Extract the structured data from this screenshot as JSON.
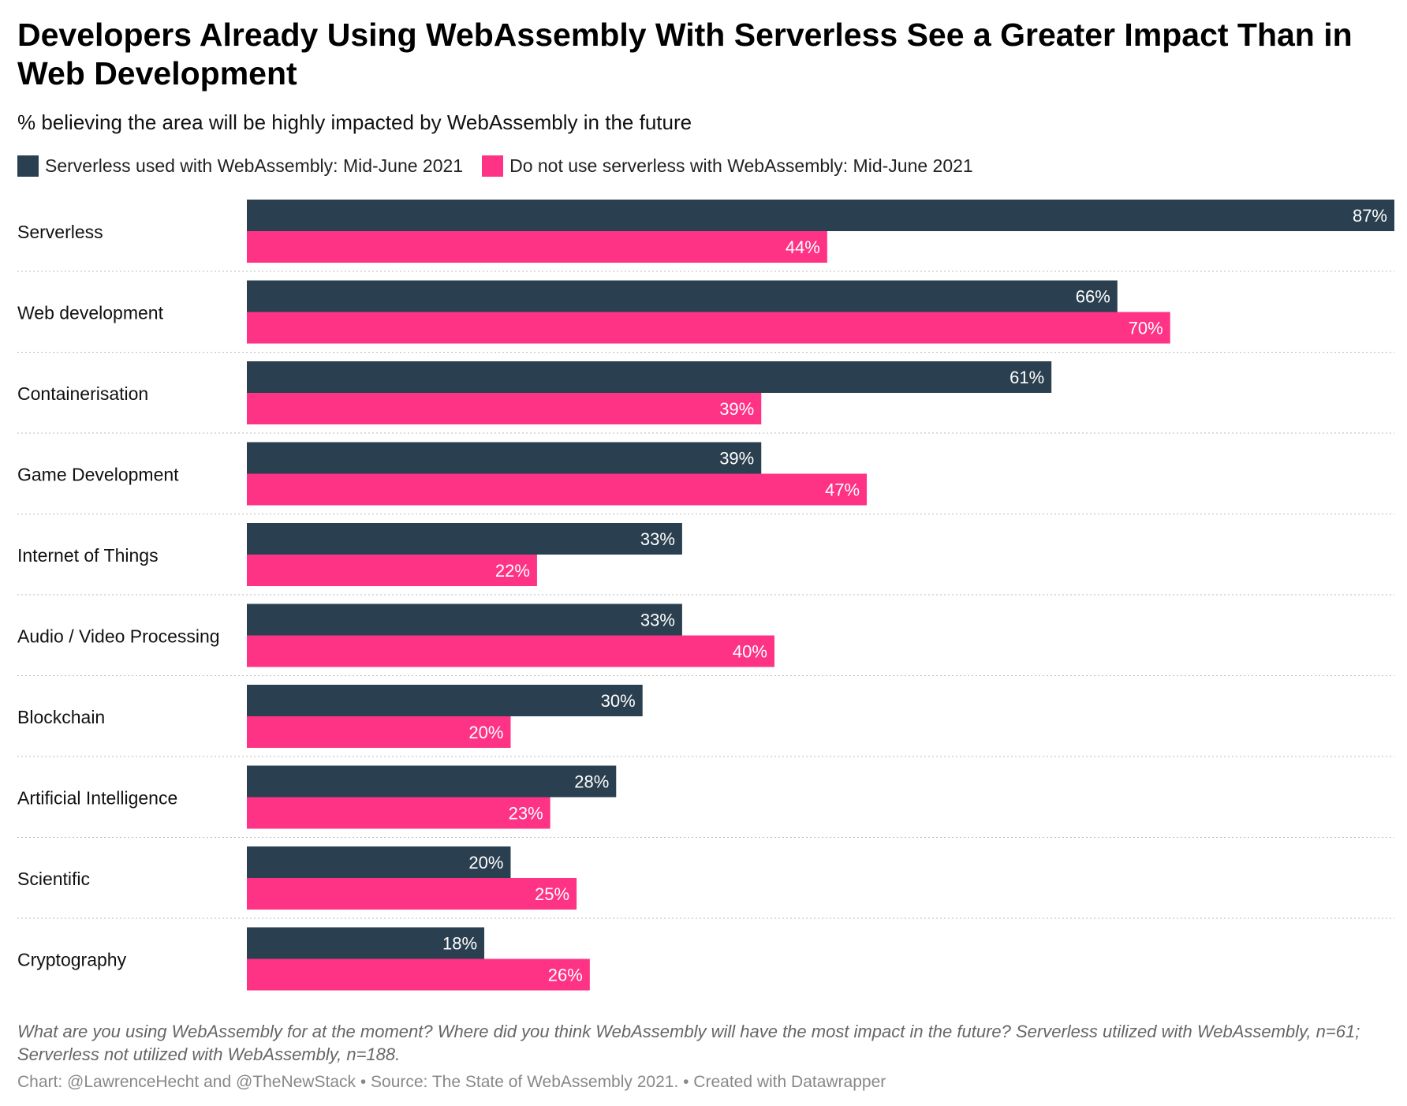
{
  "header": {
    "title": "Developers Already Using WebAssembly With Serverless See a Greater Impact Than in Web Development",
    "subtitle": "% believing the area will be highly impacted by WebAssembly in the future"
  },
  "legend": [
    {
      "label": "Serverless used with WebAssembly: Mid-June 2021",
      "color": "#2a3f4f"
    },
    {
      "label": "Do not use serverless with WebAssembly: Mid-June 2021",
      "color": "#ff3385"
    }
  ],
  "chart_data": {
    "type": "bar",
    "orientation": "horizontal",
    "categories": [
      "Serverless",
      "Web development",
      "Containerisation",
      "Game Development",
      "Internet of Things",
      "Audio / Video Processing",
      "Blockchain",
      "Artificial Intelligence",
      "Scientific",
      "Cryptography"
    ],
    "series": [
      {
        "name": "Serverless used with WebAssembly: Mid-June 2021",
        "color": "#2a3f4f",
        "values": [
          87,
          66,
          61,
          39,
          33,
          33,
          30,
          28,
          20,
          18
        ]
      },
      {
        "name": "Do not use serverless with WebAssembly: Mid-June 2021",
        "color": "#ff3385",
        "values": [
          44,
          70,
          39,
          47,
          22,
          40,
          20,
          23,
          25,
          26
        ]
      }
    ],
    "value_suffix": "%",
    "xlim": [
      0,
      87
    ],
    "grid": false,
    "legend_position": "top-left"
  },
  "footer": {
    "notes": "What are you using WebAssembly for at the moment? Where did you think WebAssembly will have the most impact in the future? Serverless utilized with WebAssembly, n=61; Serverless not utilized with WebAssembly, n=188.",
    "credit": "Chart: @LawrenceHecht and @TheNewStack • Source: The State of WebAssembly 2021. • Created with Datawrapper"
  }
}
